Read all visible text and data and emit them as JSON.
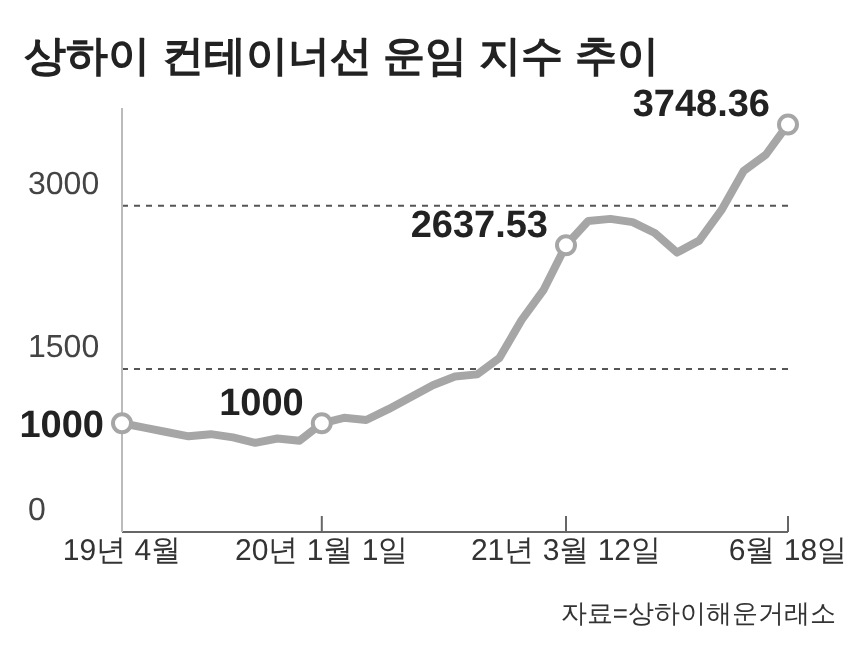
{
  "chart_data": {
    "type": "line",
    "title": "상하이 컨테이너선 운임 지수 추이",
    "categories": [
      "19년 4월",
      null,
      null,
      null,
      null,
      null,
      null,
      null,
      null,
      "20년 1월 1일",
      null,
      null,
      null,
      null,
      null,
      null,
      null,
      null,
      null,
      null,
      "21년 3월 12일",
      null,
      null,
      null,
      null,
      null,
      null,
      null,
      null,
      null,
      "6월 18일"
    ],
    "series": [
      {
        "color": "#a6a6a6",
        "marker": "none",
        "values": [
          1000,
          960,
          920,
          880,
          900,
          870,
          820,
          860,
          840,
          1000,
          1050,
          1030,
          1130,
          1240,
          1350,
          1430,
          1450,
          1600,
          1950,
          2230,
          2637.53,
          2860,
          2880,
          2850,
          2750,
          2570,
          2680,
          2960,
          3320,
          3470,
          3748.36
        ]
      },
      {
        "type": "scatter",
        "color": "#a6a6a6",
        "marker": "circle",
        "values": [
          1000,
          null,
          null,
          null,
          null,
          null,
          null,
          null,
          null,
          1000,
          null,
          null,
          null,
          null,
          null,
          null,
          null,
          null,
          null,
          null,
          2637.53,
          null,
          null,
          null,
          null,
          null,
          null,
          null,
          null,
          null,
          3748.36
        ],
        "value_labels": [
          "1000",
          null,
          null,
          null,
          null,
          null,
          null,
          null,
          null,
          "1000",
          null,
          null,
          null,
          null,
          null,
          null,
          null,
          null,
          null,
          null,
          "2637.53",
          null,
          null,
          null,
          null,
          null,
          null,
          null,
          null,
          null,
          "3748.36"
        ]
      }
    ],
    "ylim": [
      0,
      3900
    ],
    "yticks": [
      0,
      1500,
      3000
    ],
    "grid": "y",
    "line_style": "solid",
    "annotations": [
      "자료=상하이해운거래소"
    ]
  }
}
